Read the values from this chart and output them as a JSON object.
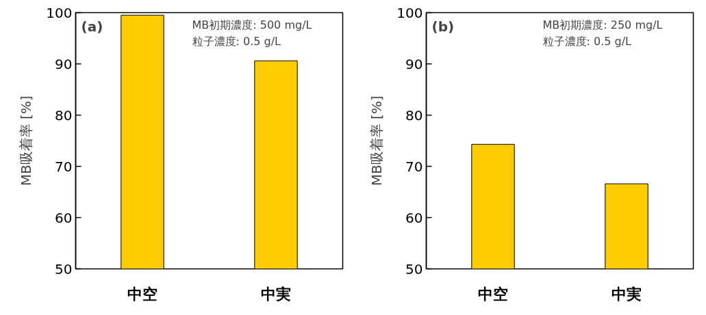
{
  "chart_data": [
    {
      "type": "bar",
      "categories": [
        "中空",
        "中実"
      ],
      "values": [
        99.5,
        90.6
      ],
      "color": "#ffcc00",
      "ylabel": "MB吸着率 [%]",
      "ylim": [
        50,
        100
      ],
      "yticks": [
        50,
        60,
        70,
        80,
        90,
        100
      ],
      "grid": false,
      "annotations": [
        "(a)",
        "MB初期濃度: 500 mg/L",
        "粒子濃度: 0.5 g/L"
      ]
    },
    {
      "type": "bar",
      "categories": [
        "中空",
        "中実"
      ],
      "values": [
        74.3,
        66.6
      ],
      "color": "#ffcc00",
      "ylabel": "MB吸着率 [%]",
      "ylim": [
        50,
        100
      ],
      "yticks": [
        50,
        60,
        70,
        80,
        90,
        100
      ],
      "grid": false,
      "annotations": [
        "(b)",
        "MB初期濃度: 250 mg/L",
        "粒子濃度: 0.5 g/L"
      ]
    }
  ]
}
